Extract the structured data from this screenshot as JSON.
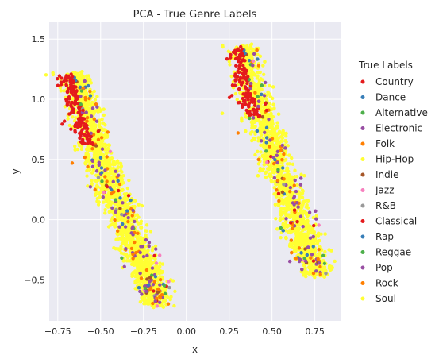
{
  "chart_data": {
    "type": "scatter",
    "title": "PCA - True Genre Labels",
    "xlabel": "x",
    "ylabel": "y",
    "xlim": [
      -0.8,
      0.9
    ],
    "ylim": [
      -0.84,
      1.64
    ],
    "xticks": [
      -0.75,
      -0.5,
      -0.25,
      0.0,
      0.25,
      0.5,
      0.75
    ],
    "xtick_labels": [
      "−0.75",
      "−0.50",
      "−0.25",
      "0.00",
      "0.25",
      "0.50",
      "0.75"
    ],
    "yticks": [
      -0.5,
      0.0,
      0.5,
      1.0,
      1.5
    ],
    "ytick_labels": [
      "−0.5",
      "0.0",
      "0.5",
      "1.0",
      "1.5"
    ],
    "grid": true,
    "legend_title": "True Labels",
    "legend_placement": "right, outside plot",
    "series": [
      {
        "name": "Country",
        "color": "#e41a1c"
      },
      {
        "name": "Dance",
        "color": "#377eb8"
      },
      {
        "name": "Alternative",
        "color": "#4daf4a"
      },
      {
        "name": "Electronic",
        "color": "#984ea3"
      },
      {
        "name": "Folk",
        "color": "#ff7f00"
      },
      {
        "name": "Hip-Hop",
        "color": "#ffff33"
      },
      {
        "name": "Indie",
        "color": "#a65628"
      },
      {
        "name": "Jazz",
        "color": "#f781bf"
      },
      {
        "name": "R&B",
        "color": "#999999"
      },
      {
        "name": "Classical",
        "color": "#e41a1c"
      },
      {
        "name": "Rap",
        "color": "#377eb8"
      },
      {
        "name": "Reggae",
        "color": "#4daf4a"
      },
      {
        "name": "Pop",
        "color": "#984ea3"
      },
      {
        "name": "Rock",
        "color": "#ff7f00"
      },
      {
        "name": "Soul",
        "color": "#ffff33"
      }
    ],
    "clusters": [
      {
        "spine": [
          [
            -0.66,
            1.2
          ],
          [
            -0.6,
            0.9
          ],
          [
            -0.52,
            0.55
          ],
          [
            -0.42,
            0.2
          ],
          [
            -0.32,
            -0.15
          ],
          [
            -0.22,
            -0.45
          ],
          [
            -0.17,
            -0.7
          ]
        ],
        "width": 0.085,
        "red_region": [
          [
            -0.68,
            1.2
          ],
          [
            -0.63,
            0.62
          ]
        ],
        "sample_size": 2200
      },
      {
        "spine": [
          [
            0.33,
            1.43
          ],
          [
            0.38,
            1.1
          ],
          [
            0.45,
            0.8
          ],
          [
            0.53,
            0.45
          ],
          [
            0.62,
            0.1
          ],
          [
            0.7,
            -0.2
          ],
          [
            0.77,
            -0.45
          ]
        ],
        "width": 0.085,
        "red_region": [
          [
            0.32,
            1.42
          ],
          [
            0.4,
            0.85
          ]
        ],
        "sample_size": 2200
      }
    ]
  }
}
